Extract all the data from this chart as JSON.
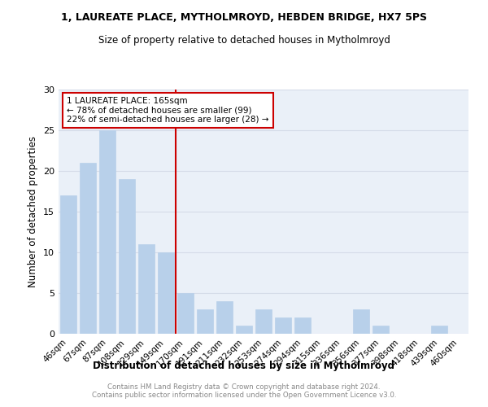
{
  "title1": "1, LAUREATE PLACE, MYTHOLMROYD, HEBDEN BRIDGE, HX7 5PS",
  "title2": "Size of property relative to detached houses in Mytholmroyd",
  "xlabel": "Distribution of detached houses by size in Mytholmroyd",
  "ylabel": "Number of detached properties",
  "categories": [
    "46sqm",
    "67sqm",
    "87sqm",
    "108sqm",
    "129sqm",
    "149sqm",
    "170sqm",
    "191sqm",
    "211sqm",
    "232sqm",
    "253sqm",
    "274sqm",
    "294sqm",
    "315sqm",
    "336sqm",
    "356sqm",
    "377sqm",
    "398sqm",
    "418sqm",
    "439sqm",
    "460sqm"
  ],
  "values": [
    17,
    21,
    25,
    19,
    11,
    10,
    5,
    3,
    4,
    1,
    3,
    2,
    2,
    0,
    0,
    3,
    1,
    0,
    0,
    1,
    0
  ],
  "bar_color": "#b8d0ea",
  "bar_edgecolor": "#b8d0ea",
  "vline_x": 5.5,
  "vline_color": "#cc0000",
  "annotation_title": "1 LAUREATE PLACE: 165sqm",
  "annotation_line1": "← 78% of detached houses are smaller (99)",
  "annotation_line2": "22% of semi-detached houses are larger (28) →",
  "annotation_box_color": "#cc0000",
  "ylim": [
    0,
    30
  ],
  "yticks": [
    0,
    5,
    10,
    15,
    20,
    25,
    30
  ],
  "footer": "Contains HM Land Registry data © Crown copyright and database right 2024.\nContains public sector information licensed under the Open Government Licence v3.0.",
  "grid_color": "#d5dce8",
  "background_color": "#eaf0f8"
}
